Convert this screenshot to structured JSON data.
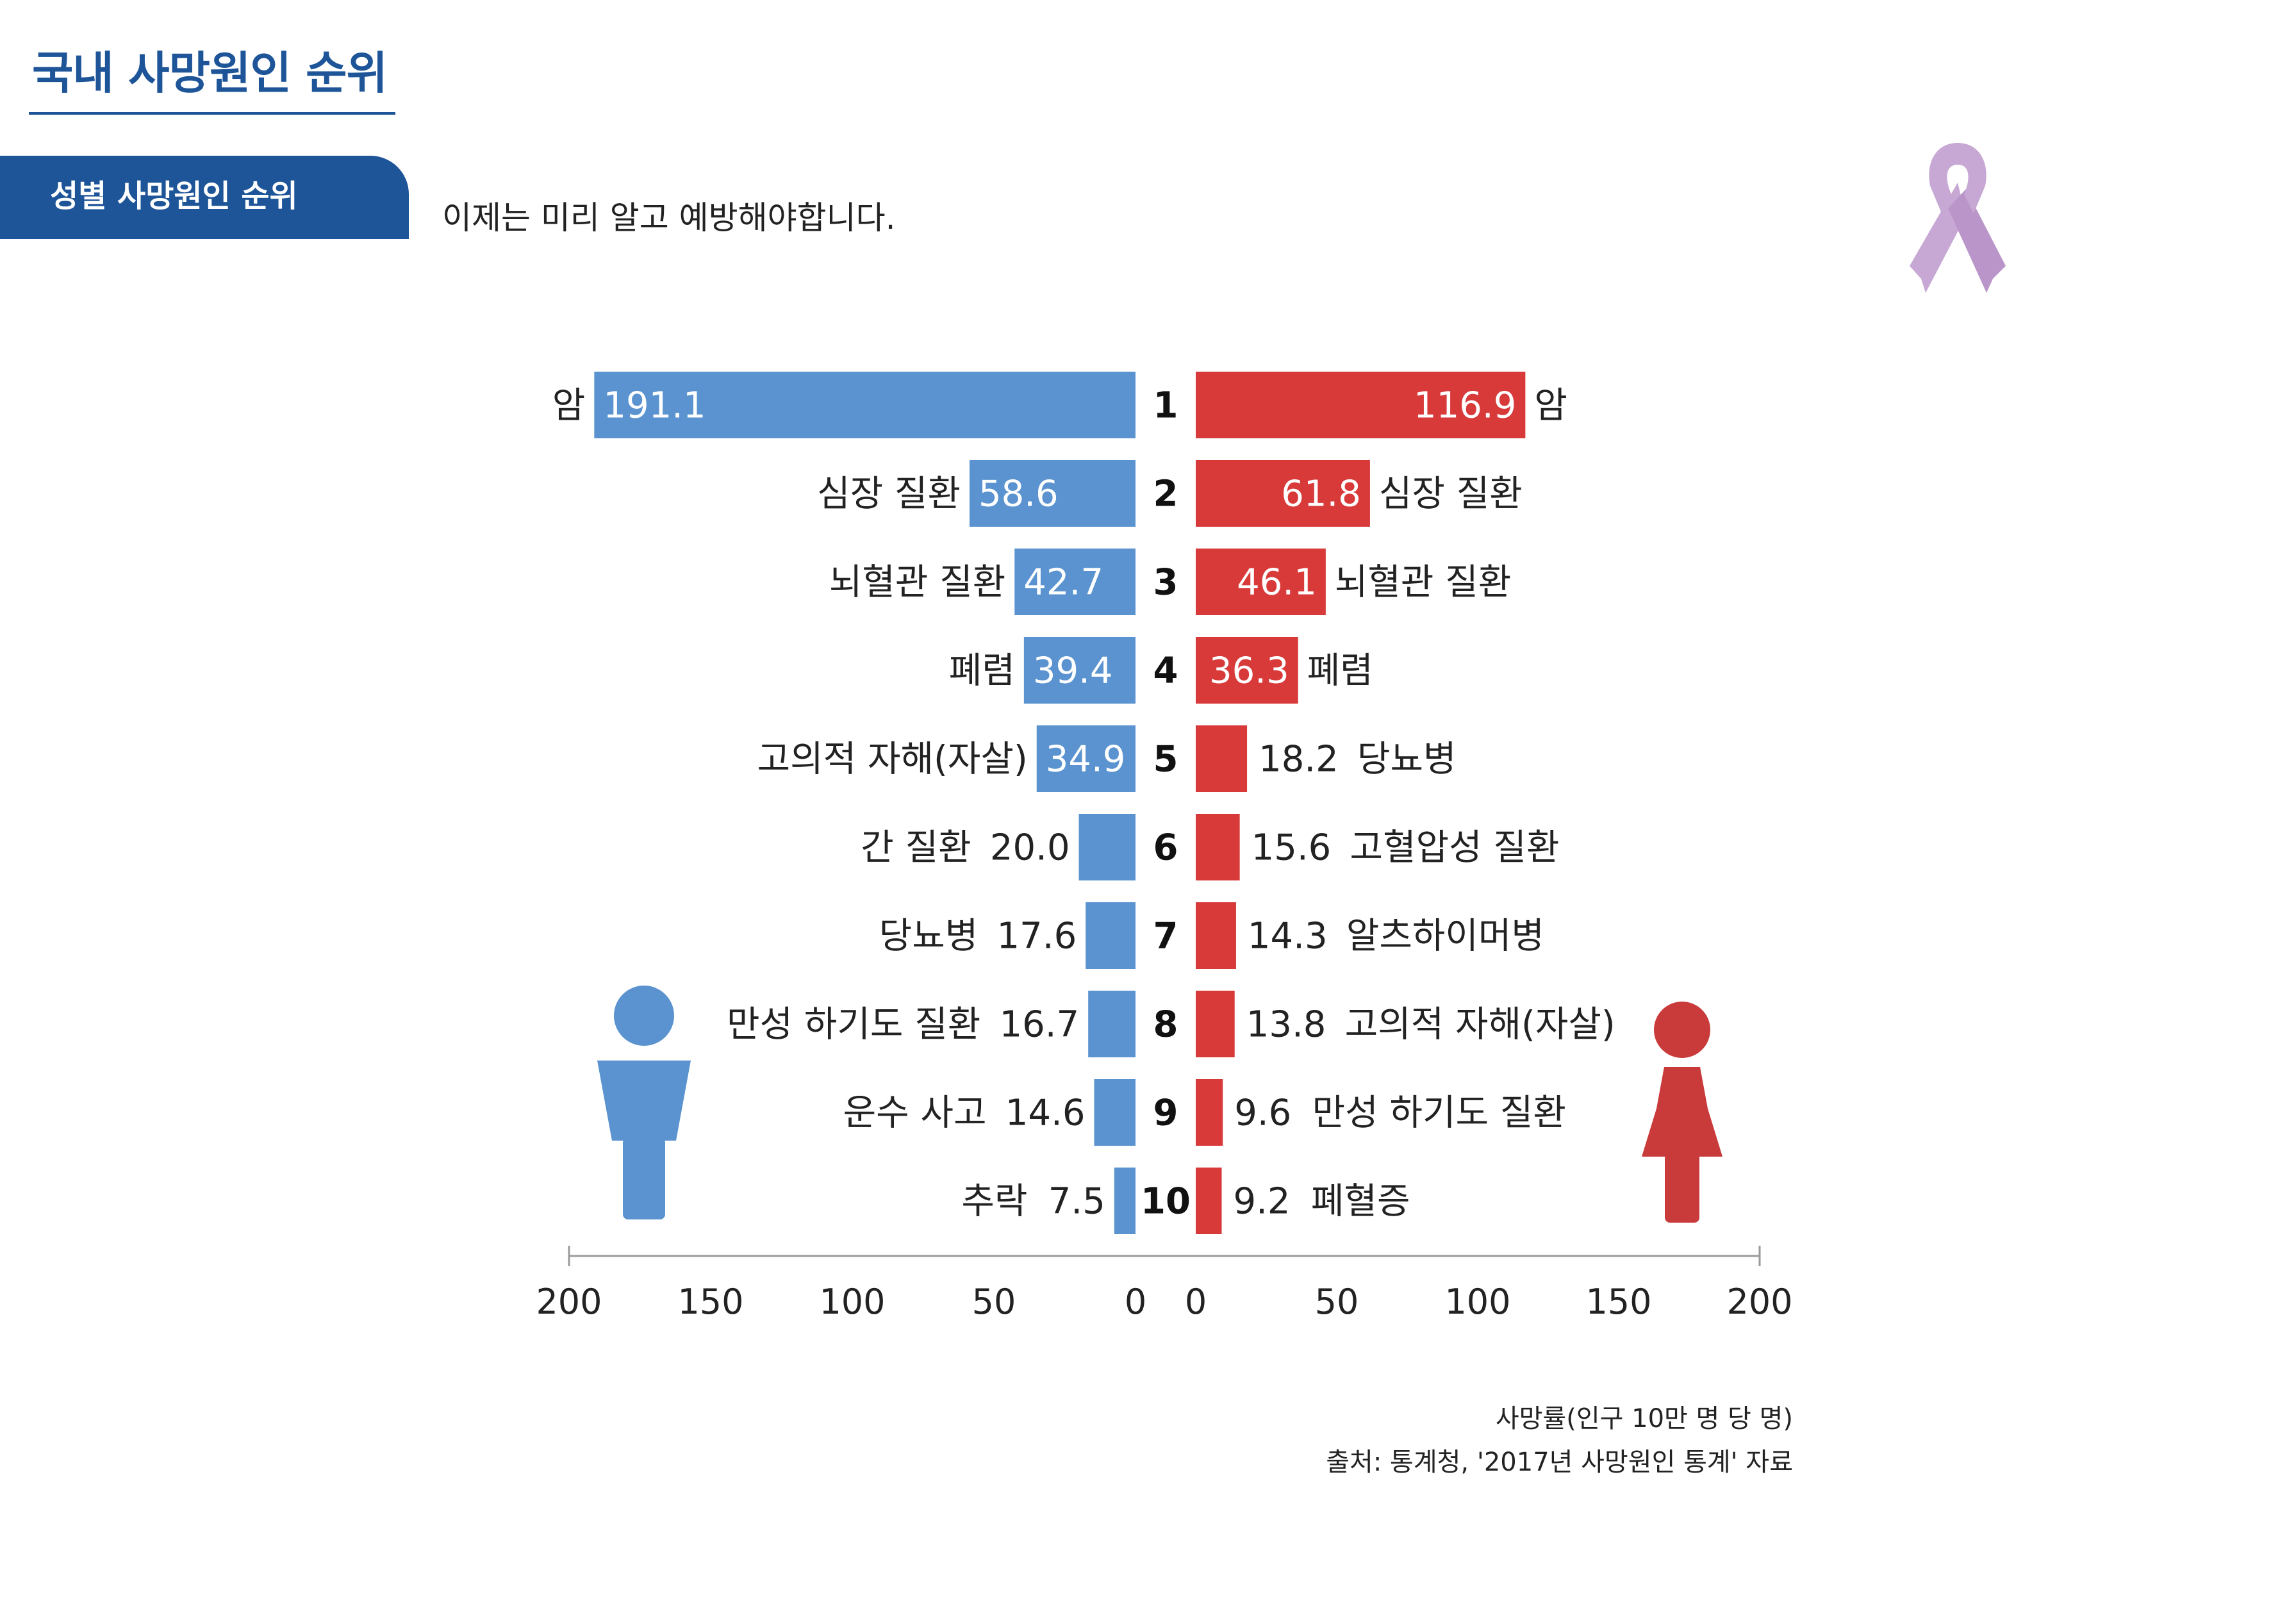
{
  "header": {
    "title": "국내 사망원인 순위",
    "section_tab": "성별 사망원인 순위",
    "subtitle": "이제는 미리 알고 예방해야합니다."
  },
  "icons": {
    "top_right": "awareness-ribbon-icon",
    "left_figure": "male-person-icon",
    "right_figure": "female-person-icon"
  },
  "colors": {
    "male": "#5a93cf",
    "female": "#d83a3a",
    "title": "#1e5598",
    "ribbon": "#c7a8d4"
  },
  "chart_data": {
    "type": "bar",
    "orientation": "horizontal-butterfly",
    "ranks": [
      "1",
      "2",
      "3",
      "4",
      "5",
      "6",
      "7",
      "8",
      "9",
      "10"
    ],
    "xlim": [
      0,
      200
    ],
    "ticks": [
      "200",
      "150",
      "100",
      "50",
      "0",
      "0",
      "50",
      "100",
      "150",
      "200"
    ],
    "series": [
      {
        "side": "left",
        "categories": [
          "암",
          "심장 질환",
          "뇌혈관 질환",
          "폐렴",
          "고의적 자해(자살)",
          "간 질환",
          "당뇨병",
          "만성 하기도 질환",
          "운수 사고",
          "추락"
        ],
        "values": [
          191.1,
          58.6,
          42.7,
          39.4,
          34.9,
          20.0,
          17.6,
          16.7,
          14.6,
          7.5
        ],
        "labels": [
          "191.1",
          "58.6",
          "42.7",
          "39.4",
          "34.9",
          "20.0",
          "17.6",
          "16.7",
          "14.6",
          "7.5"
        ]
      },
      {
        "side": "right",
        "categories": [
          "암",
          "심장 질환",
          "뇌혈관 질환",
          "폐렴",
          "당뇨병",
          "고혈압성 질환",
          "알츠하이머병",
          "고의적 자해(자살)",
          "만성 하기도 질환",
          "폐혈증"
        ],
        "values": [
          116.9,
          61.8,
          46.1,
          36.3,
          18.2,
          15.6,
          14.3,
          13.8,
          9.6,
          9.2
        ],
        "labels": [
          "116.9",
          "61.8",
          "46.1",
          "36.3",
          "18.2",
          "15.6",
          "14.3",
          "13.8",
          "9.6",
          "9.2"
        ]
      }
    ]
  },
  "notes": {
    "unit": "사망률(인구 10만 명 당 명)",
    "source": "출처: 통계청,  '2017년 사망원인 통계' 자료"
  }
}
